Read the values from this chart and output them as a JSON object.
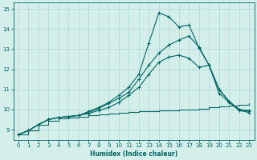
{
  "xlabel": "Humidex (Indice chaleur)",
  "bg_color": "#d4eeea",
  "line_color": "#006666",
  "grid_color": "#b0d8d4",
  "xlim": [
    -0.5,
    23.5
  ],
  "ylim": [
    8.5,
    15.3
  ],
  "xticks": [
    0,
    1,
    2,
    3,
    4,
    5,
    6,
    7,
    8,
    9,
    10,
    11,
    12,
    13,
    14,
    15,
    16,
    17,
    18,
    19,
    20,
    21,
    22,
    23
  ],
  "yticks": [
    9,
    10,
    11,
    12,
    13,
    14,
    15
  ],
  "line1_x": [
    0,
    1,
    2,
    3,
    4,
    5,
    6,
    7,
    8,
    9,
    10,
    11,
    12,
    13,
    14,
    15,
    16,
    17,
    18,
    19,
    20,
    21,
    22,
    23
  ],
  "line1_y": [
    8.75,
    8.95,
    9.25,
    9.45,
    9.55,
    9.6,
    9.65,
    9.7,
    9.75,
    9.8,
    9.85,
    9.88,
    9.9,
    9.92,
    9.95,
    9.97,
    9.98,
    10.0,
    10.05,
    10.1,
    10.15,
    10.2,
    10.25,
    10.3
  ],
  "line2_x": [
    0,
    1,
    2,
    3,
    4,
    5,
    6,
    7,
    8,
    9,
    10,
    11,
    12,
    13,
    14,
    15,
    16,
    17,
    18,
    19,
    20,
    21,
    22,
    23
  ],
  "line2_y": [
    8.75,
    8.95,
    9.25,
    9.5,
    9.6,
    9.65,
    9.7,
    9.8,
    9.95,
    10.1,
    10.35,
    10.7,
    11.1,
    11.75,
    12.35,
    12.6,
    12.7,
    12.55,
    12.1,
    12.2,
    11.0,
    10.4,
    10.0,
    9.95
  ],
  "line3_x": [
    0,
    1,
    2,
    3,
    4,
    5,
    6,
    7,
    8,
    9,
    10,
    11,
    12,
    13,
    14,
    15,
    16,
    17,
    18,
    19,
    20,
    21,
    22,
    23
  ],
  "line3_y": [
    8.75,
    8.95,
    9.25,
    9.5,
    9.6,
    9.65,
    9.7,
    9.9,
    10.1,
    10.35,
    10.7,
    11.1,
    11.75,
    13.3,
    14.8,
    14.6,
    14.1,
    14.2,
    13.05,
    12.2,
    10.8,
    10.35,
    9.95,
    9.85
  ],
  "line4_x": [
    0,
    1,
    2,
    3,
    4,
    5,
    6,
    7,
    8,
    9,
    10,
    11,
    12,
    13,
    14,
    15,
    16,
    17,
    18,
    19,
    20,
    21,
    22,
    23
  ],
  "line4_y": [
    8.75,
    8.95,
    9.25,
    9.5,
    9.6,
    9.65,
    9.7,
    9.85,
    10.05,
    10.3,
    10.55,
    10.85,
    11.5,
    12.2,
    12.8,
    13.2,
    13.45,
    13.65,
    13.1,
    12.2,
    11.0,
    10.4,
    10.0,
    9.9
  ],
  "marker": "+",
  "marker_size": 3.5,
  "linewidth": 0.8
}
